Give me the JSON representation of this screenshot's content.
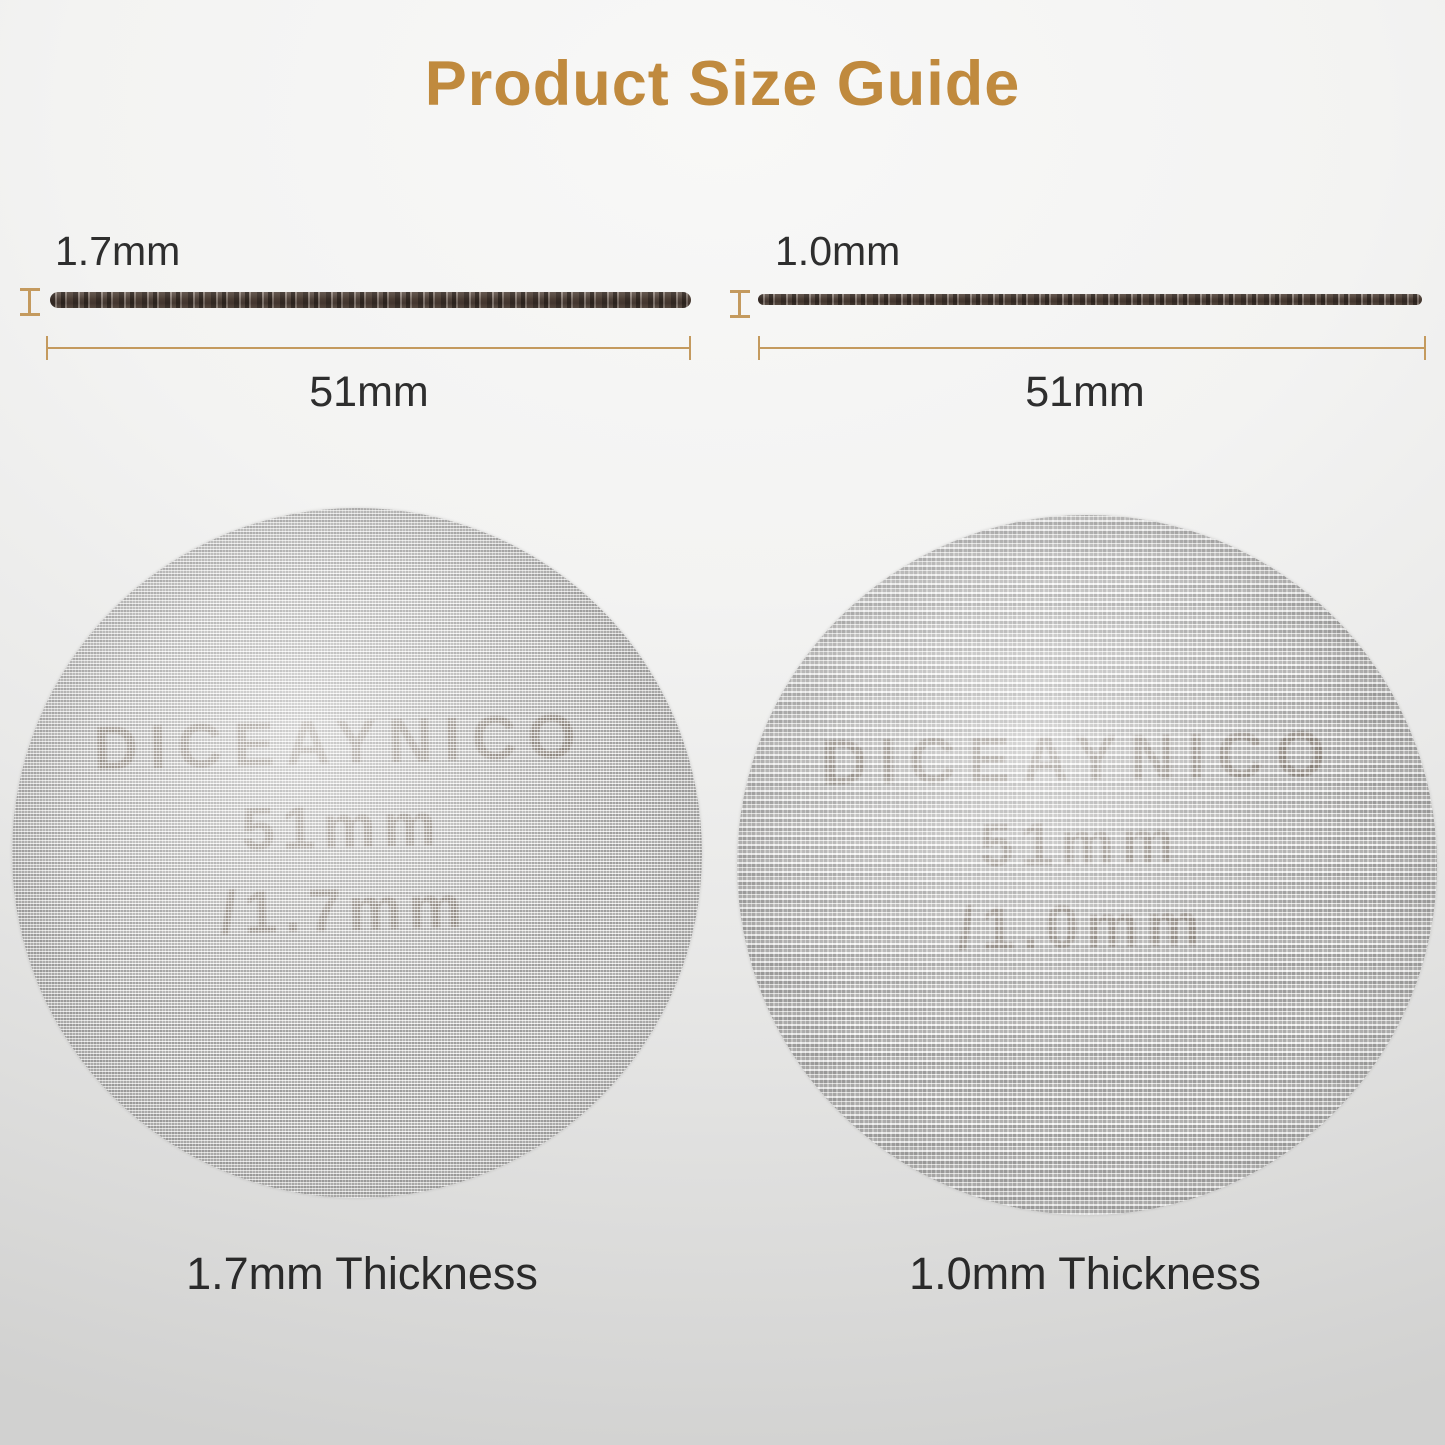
{
  "title": "Product Size Guide",
  "colors": {
    "title_gold": "#C08A3E",
    "dimension_gold": "#C49A5E",
    "label_dark": "#2E2E2E",
    "engraving_brown": "#6E563E"
  },
  "left_figure": {
    "thickness": "1.7mm",
    "diameter": "51mm"
  },
  "right_figure": {
    "thickness": "1.0mm",
    "diameter": "51mm"
  },
  "left_disc": {
    "brand": "DICEAYNICO",
    "size_line": "51mm",
    "thickness_line": "/1.7mm",
    "caption": "1.7mm Thickness"
  },
  "right_disc": {
    "brand": "DICEAYNICO",
    "size_line": "51mm",
    "thickness_line": "/1.0mm",
    "caption": "1.0mm Thickness"
  }
}
